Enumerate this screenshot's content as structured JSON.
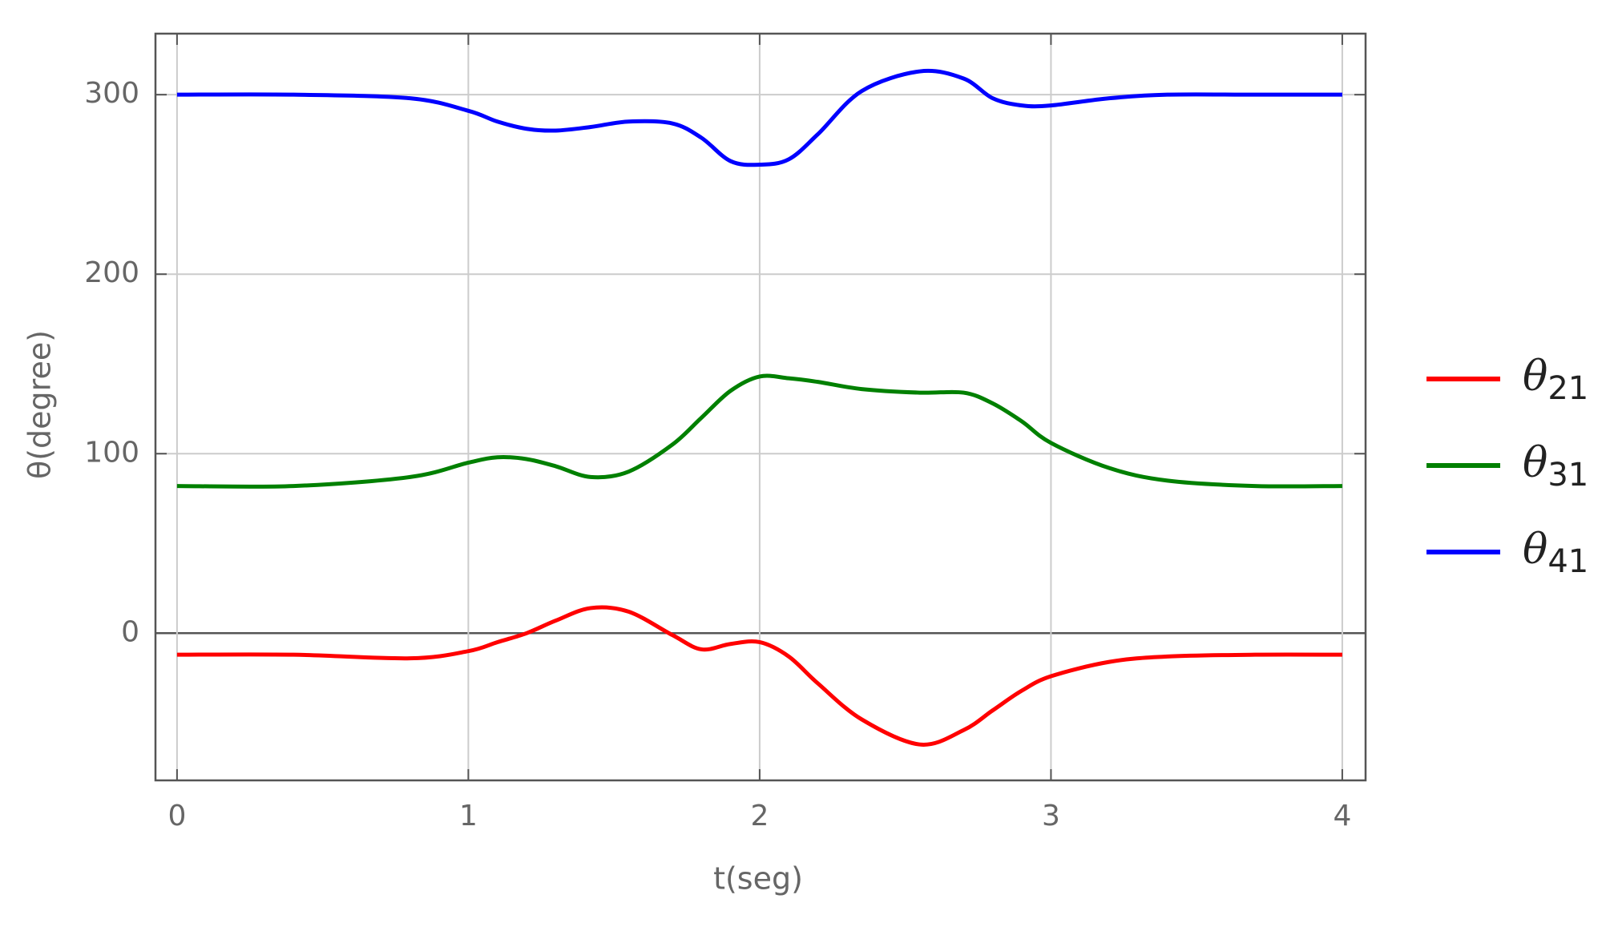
{
  "chart_data": {
    "type": "line",
    "xlabel": "t(seg)",
    "ylabel": "θ(degree)",
    "x": [
      0,
      0.4,
      0.8,
      1.0,
      1.1,
      1.2,
      1.3,
      1.42,
      1.55,
      1.7,
      1.8,
      1.9,
      2.0,
      2.1,
      2.2,
      2.35,
      2.55,
      2.7,
      2.8,
      2.9,
      3.0,
      3.2,
      3.4,
      3.7,
      4.0
    ],
    "series": [
      {
        "name": "θ21",
        "color": "#ff0000",
        "values": [
          -12,
          -12,
          -14,
          -10,
          -5,
          0,
          7,
          14,
          12,
          -1,
          -9,
          -6,
          -5,
          -13,
          -28,
          -48,
          -62,
          -54,
          -43,
          -32,
          -24,
          -16,
          -13,
          -12,
          -12
        ]
      },
      {
        "name": "θ31",
        "color": "#008000",
        "values": [
          82,
          82,
          87,
          95,
          98,
          97,
          93,
          87,
          90,
          105,
          120,
          135,
          143,
          142,
          140,
          136,
          134,
          134,
          128,
          118,
          106,
          92,
          85,
          82,
          82
        ]
      },
      {
        "name": "θ41",
        "color": "#0000ff",
        "values": [
          300,
          300,
          298,
          291,
          285,
          281,
          280,
          282,
          285,
          284,
          276,
          263,
          261,
          264,
          278,
          302,
          313,
          309,
          298,
          294,
          294,
          298,
          300,
          300,
          300
        ]
      }
    ],
    "xlim": [
      -0.074,
      4.08
    ],
    "ylim": [
      -82,
      334
    ],
    "xticks": [
      0,
      1,
      2,
      3,
      4
    ],
    "yticks": [
      0,
      100,
      200,
      300
    ],
    "grid": true
  }
}
